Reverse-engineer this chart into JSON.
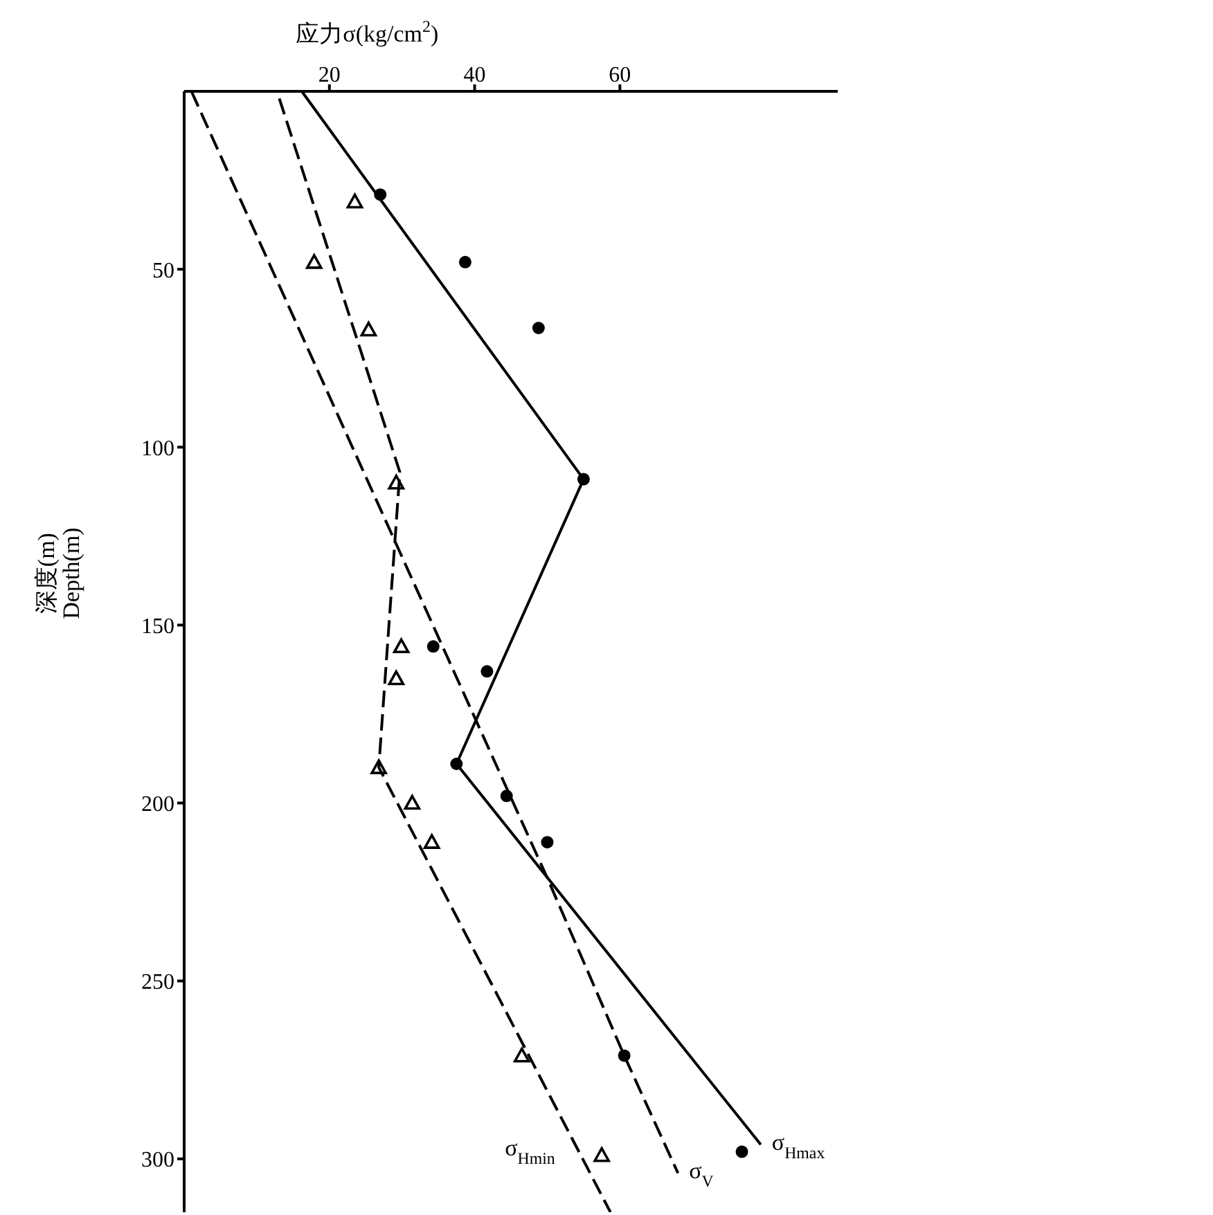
{
  "chart_data": {
    "type": "line",
    "xlabel": "应力σ(kg/cm$^{2}$)",
    "ylabel": "深度(m)\nDepth(m)",
    "xlim": [
      0,
      90
    ],
    "xticks": [
      20,
      40,
      60
    ],
    "ylim": [
      315,
      0
    ],
    "yticks": [
      50,
      100,
      150,
      200,
      250,
      300
    ],
    "grid": false,
    "legend": false,
    "series": [
      {
        "name": "σ$_{Hmax}$",
        "color": "#000000",
        "line_style": "solid",
        "marker": "none",
        "x": [
          16.2,
          55,
          37.5,
          79.4
        ],
        "values": [
          0,
          109,
          189,
          296
        ]
      },
      {
        "name": "σ$_{V}$",
        "color": "#000000",
        "line_style": "dashed",
        "marker": "none",
        "x": [
          1,
          50.1,
          60.6,
          68
        ],
        "values": [
          0,
          221.5,
          271,
          304
        ]
      },
      {
        "name": "σ$_{Hmin}$",
        "color": "#000000",
        "line_style": "dashed",
        "marker": "none",
        "x": [
          13.1,
          29.7,
          26.8,
          58.7
        ],
        "values": [
          2,
          107,
          190,
          315
        ]
      },
      {
        "type": "scatter",
        "color": "#000000",
        "marker": "circle",
        "x": [
          27,
          38.7,
          48.8,
          55,
          34.3,
          41.7,
          37.5,
          44.4,
          50,
          60.6,
          76.8
        ],
        "values": [
          29,
          48,
          66.5,
          109,
          156,
          163,
          189,
          198,
          211,
          271,
          298
        ]
      },
      {
        "type": "scatter",
        "color": "#000000",
        "marker": "triangle",
        "x": [
          23.5,
          17.9,
          25.4,
          29.2,
          29.9,
          29.2,
          26.8,
          31.4,
          34.1,
          46.5,
          57.5
        ],
        "values": [
          31,
          48,
          67,
          110,
          156,
          165,
          190,
          200,
          211,
          271,
          299
        ]
      }
    ]
  }
}
